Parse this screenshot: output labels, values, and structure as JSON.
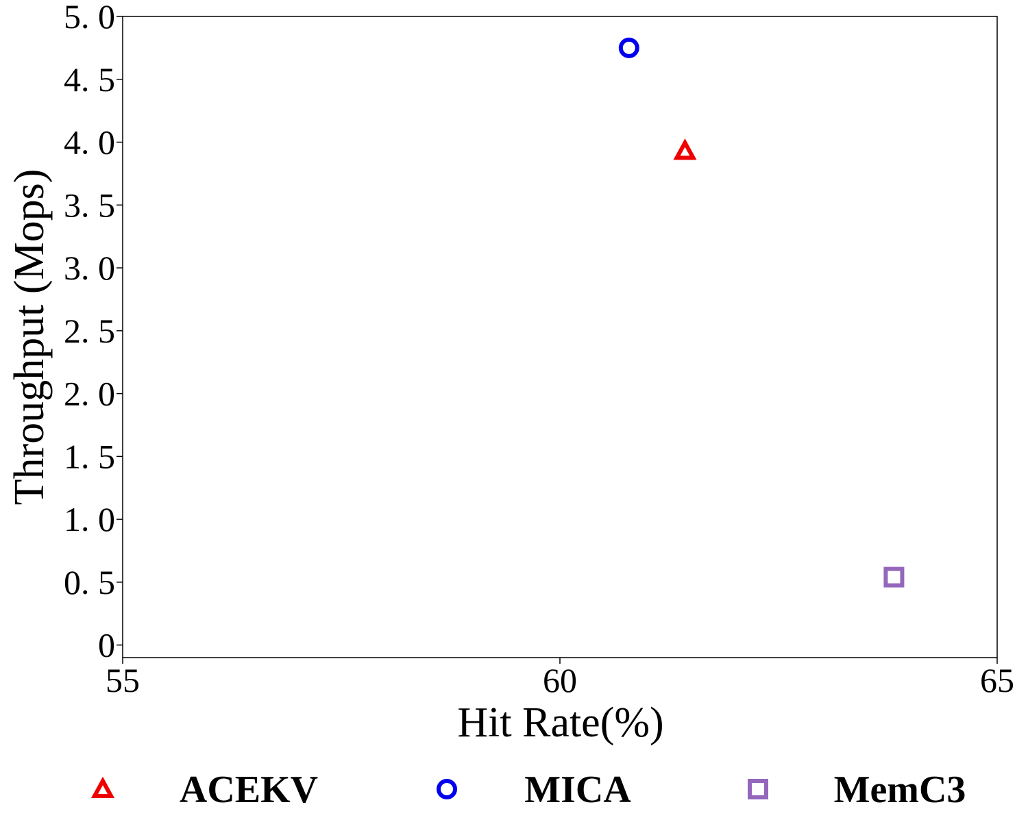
{
  "chart_data": {
    "type": "scatter",
    "xlabel": "Hit Rate(%)",
    "ylabel": "Throughput (Mops)",
    "xlim": [
      55,
      65
    ],
    "ylim": [
      -0.1,
      5.0
    ],
    "xticks": [
      55,
      60,
      65
    ],
    "xtick_labels": [
      "55",
      "60",
      "65"
    ],
    "yticks": [
      0,
      0.5,
      1.0,
      1.5,
      2.0,
      2.5,
      3.0,
      3.5,
      4.0,
      4.5,
      5.0
    ],
    "ytick_labels": [
      "0",
      "0. 5",
      "1. 0",
      "1. 5",
      "2. 0",
      "2. 5",
      "3. 0",
      "3. 5",
      "4. 0",
      "4. 5",
      "5. 0"
    ],
    "grid": false,
    "legend_position": "bottom",
    "series": [
      {
        "name": "ACEKV",
        "marker": "triangle",
        "color": "#ee0000",
        "x": [
          61.43
        ],
        "y": [
          3.93
        ]
      },
      {
        "name": "MICA",
        "marker": "circle",
        "color": "#0000ee",
        "x": [
          60.79
        ],
        "y": [
          4.75
        ]
      },
      {
        "name": "MemC3",
        "marker": "square",
        "color": "#9467bd",
        "x": [
          63.82
        ],
        "y": [
          0.54
        ]
      }
    ]
  }
}
